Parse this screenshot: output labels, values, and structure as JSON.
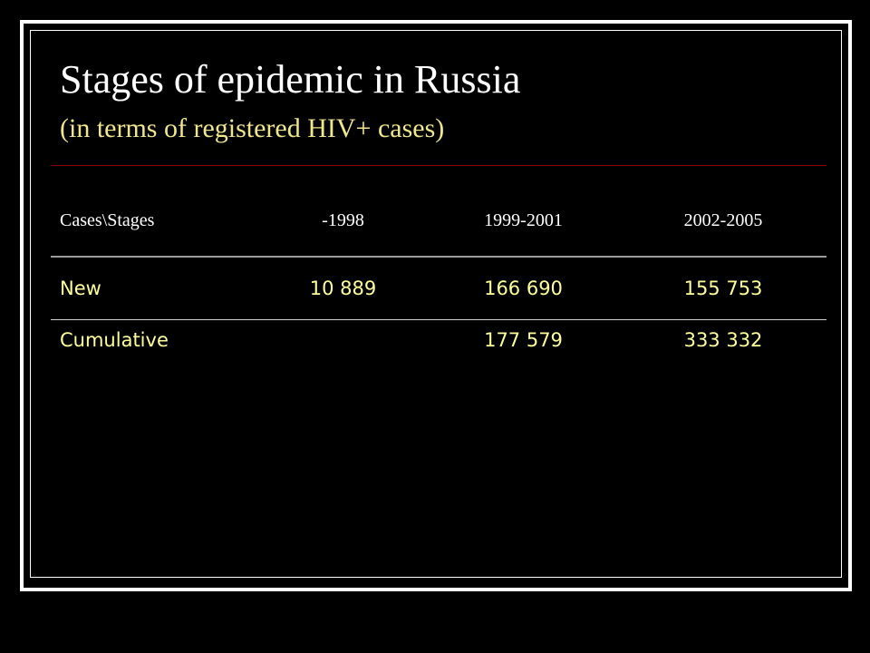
{
  "slide": {
    "title": "Stages of epidemic in Russia",
    "subtitle": "(in terms of registered HIV+ cases)"
  },
  "table": {
    "headers": [
      "Cases\\Stages",
      "-1998",
      "1999-2001",
      "2002-2005"
    ],
    "rows": [
      {
        "label": "New",
        "values": [
          "10 889",
          "166 690",
          "155 753"
        ]
      },
      {
        "label": "Cumulative",
        "values": [
          "",
          "177 579",
          "333 332"
        ]
      }
    ]
  },
  "colors": {
    "background": "#000000",
    "title": "#ffffff",
    "subtitle": "#f0e68c",
    "header_text": "#ffffff",
    "cell_text": "#ffff99",
    "title_rule": "#8b0000",
    "frame": "#ffffff"
  }
}
